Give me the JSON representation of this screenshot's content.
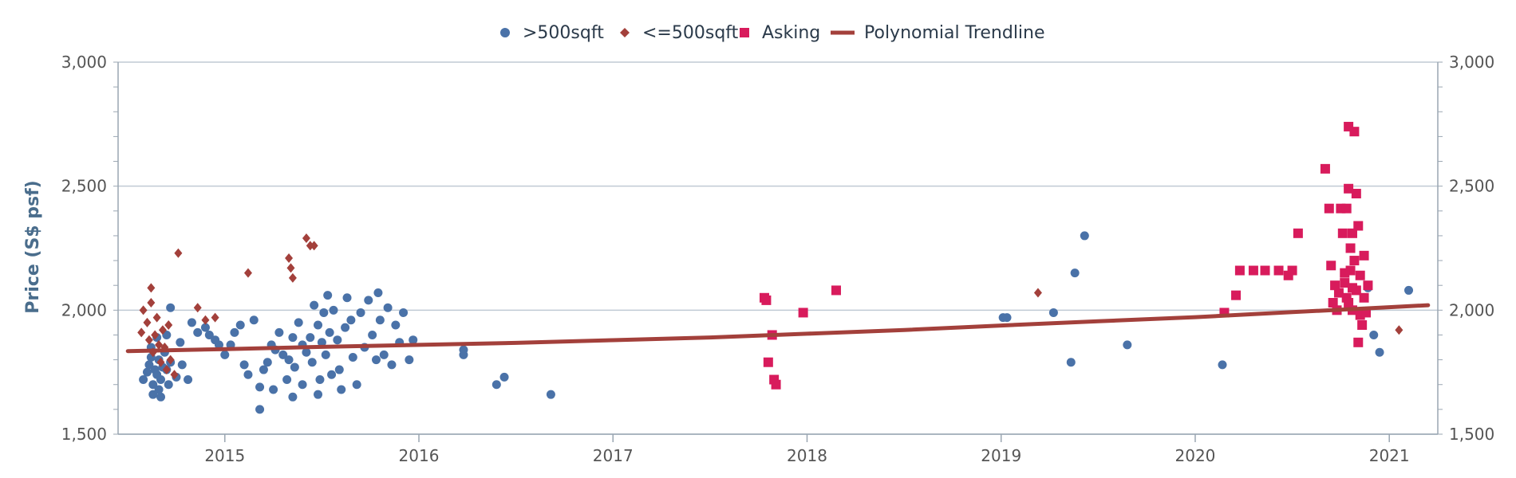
{
  "chart_data": {
    "type": "scatter",
    "title": "",
    "xlabel": "",
    "ylabel": "Price (S$ psf)",
    "xlim": [
      2014.45,
      2021.25
    ],
    "ylim": [
      1500,
      3000
    ],
    "x_ticks": [
      "2015",
      "2016",
      "2017",
      "2018",
      "2019",
      "2020",
      "2021"
    ],
    "y_ticks": [
      "1,500",
      "2,000",
      "2,500",
      "3,000"
    ],
    "right_y_ticks": [
      "1,500",
      "2,000",
      "2,500",
      "3,000"
    ],
    "gridlines": true,
    "legend_position": "top-center",
    "colors": {
      "large": "#4a72a8",
      "small": "#a3403b",
      "asking": "#d81b5c",
      "trend": "#a3403b",
      "grid": "#c0cad4",
      "axis_label": "#4a6d8c"
    },
    "series": [
      {
        "name": ">500sqft",
        "marker": "circle",
        "color": "#4a72a8",
        "points": [
          [
            2014.58,
            1720
          ],
          [
            2014.6,
            1750
          ],
          [
            2014.61,
            1780
          ],
          [
            2014.62,
            1810
          ],
          [
            2014.62,
            1850
          ],
          [
            2014.63,
            1700
          ],
          [
            2014.63,
            1660
          ],
          [
            2014.64,
            1760
          ],
          [
            2014.65,
            1890
          ],
          [
            2014.65,
            1740
          ],
          [
            2014.66,
            1680
          ],
          [
            2014.66,
            1800
          ],
          [
            2014.67,
            1720
          ],
          [
            2014.67,
            1650
          ],
          [
            2014.68,
            1770
          ],
          [
            2014.69,
            1830
          ],
          [
            2014.7,
            1900
          ],
          [
            2014.7,
            1760
          ],
          [
            2014.71,
            1700
          ],
          [
            2014.72,
            2010
          ],
          [
            2014.72,
            1790
          ],
          [
            2014.75,
            1730
          ],
          [
            2014.77,
            1870
          ],
          [
            2014.78,
            1780
          ],
          [
            2014.81,
            1720
          ],
          [
            2014.83,
            1950
          ],
          [
            2014.86,
            1910
          ],
          [
            2014.9,
            1930
          ],
          [
            2014.92,
            1900
          ],
          [
            2014.95,
            1880
          ],
          [
            2014.97,
            1860
          ],
          [
            2015.0,
            1820
          ],
          [
            2015.03,
            1860
          ],
          [
            2015.05,
            1910
          ],
          [
            2015.08,
            1940
          ],
          [
            2015.1,
            1780
          ],
          [
            2015.12,
            1740
          ],
          [
            2015.15,
            1960
          ],
          [
            2015.18,
            1690
          ],
          [
            2015.2,
            1760
          ],
          [
            2015.22,
            1790
          ],
          [
            2015.24,
            1860
          ],
          [
            2015.26,
            1840
          ],
          [
            2015.28,
            1910
          ],
          [
            2015.3,
            1820
          ],
          [
            2015.32,
            1720
          ],
          [
            2015.33,
            1800
          ],
          [
            2015.35,
            1890
          ],
          [
            2015.36,
            1770
          ],
          [
            2015.38,
            1950
          ],
          [
            2015.4,
            1860
          ],
          [
            2015.4,
            1700
          ],
          [
            2015.42,
            1830
          ],
          [
            2015.44,
            1890
          ],
          [
            2015.45,
            1790
          ],
          [
            2015.46,
            2020
          ],
          [
            2015.48,
            1940
          ],
          [
            2015.49,
            1720
          ],
          [
            2015.5,
            1870
          ],
          [
            2015.51,
            1990
          ],
          [
            2015.52,
            1820
          ],
          [
            2015.54,
            1910
          ],
          [
            2015.55,
            1740
          ],
          [
            2015.56,
            2000
          ],
          [
            2015.58,
            1880
          ],
          [
            2015.59,
            1760
          ],
          [
            2015.6,
            1680
          ],
          [
            2015.62,
            1930
          ],
          [
            2015.63,
            2050
          ],
          [
            2015.65,
            1960
          ],
          [
            2015.66,
            1810
          ],
          [
            2015.68,
            1700
          ],
          [
            2015.7,
            1990
          ],
          [
            2015.72,
            1850
          ],
          [
            2015.74,
            2040
          ],
          [
            2015.76,
            1900
          ],
          [
            2015.78,
            1800
          ],
          [
            2015.8,
            1960
          ],
          [
            2015.82,
            1820
          ],
          [
            2015.84,
            2010
          ],
          [
            2015.86,
            1780
          ],
          [
            2015.88,
            1940
          ],
          [
            2015.9,
            1870
          ],
          [
            2015.92,
            1990
          ],
          [
            2015.95,
            1800
          ],
          [
            2015.97,
            1880
          ],
          [
            2015.18,
            1600
          ],
          [
            2015.25,
            1680
          ],
          [
            2015.35,
            1650
          ],
          [
            2015.48,
            1660
          ],
          [
            2015.53,
            2060
          ],
          [
            2015.79,
            2070
          ],
          [
            2016.23,
            1820
          ],
          [
            2016.23,
            1840
          ],
          [
            2016.4,
            1700
          ],
          [
            2016.44,
            1730
          ],
          [
            2016.68,
            1660
          ],
          [
            2019.01,
            1970
          ],
          [
            2019.03,
            1970
          ],
          [
            2019.27,
            1990
          ],
          [
            2019.36,
            1790
          ],
          [
            2019.38,
            2150
          ],
          [
            2019.43,
            2300
          ],
          [
            2019.65,
            1860
          ],
          [
            2020.14,
            1780
          ],
          [
            2020.89,
            2090
          ],
          [
            2020.92,
            1900
          ],
          [
            2020.95,
            1830
          ],
          [
            2021.1,
            2080
          ]
        ]
      },
      {
        "name": "<=500sqft",
        "marker": "diamond",
        "color": "#a3403b",
        "points": [
          [
            2014.57,
            1910
          ],
          [
            2014.58,
            2000
          ],
          [
            2014.6,
            1950
          ],
          [
            2014.61,
            1880
          ],
          [
            2014.62,
            2090
          ],
          [
            2014.62,
            2030
          ],
          [
            2014.63,
            1830
          ],
          [
            2014.64,
            1900
          ],
          [
            2014.65,
            1970
          ],
          [
            2014.66,
            1860
          ],
          [
            2014.67,
            1790
          ],
          [
            2014.68,
            1920
          ],
          [
            2014.69,
            1850
          ],
          [
            2014.7,
            1760
          ],
          [
            2014.71,
            1940
          ],
          [
            2014.72,
            1800
          ],
          [
            2014.74,
            1740
          ],
          [
            2014.76,
            2230
          ],
          [
            2014.9,
            1960
          ],
          [
            2015.12,
            2150
          ],
          [
            2015.33,
            2210
          ],
          [
            2015.34,
            2170
          ],
          [
            2015.35,
            2130
          ],
          [
            2015.42,
            2290
          ],
          [
            2015.44,
            2260
          ],
          [
            2015.46,
            2260
          ],
          [
            2019.19,
            2070
          ],
          [
            2021.05,
            1920
          ],
          [
            2014.86,
            2010
          ],
          [
            2014.95,
            1970
          ]
        ]
      },
      {
        "name": "Asking",
        "marker": "square",
        "color": "#d81b5c",
        "points": [
          [
            2017.78,
            2050
          ],
          [
            2017.79,
            2040
          ],
          [
            2017.8,
            1790
          ],
          [
            2017.82,
            1900
          ],
          [
            2017.83,
            1720
          ],
          [
            2017.84,
            1700
          ],
          [
            2017.98,
            1990
          ],
          [
            2018.15,
            2080
          ],
          [
            2020.15,
            1990
          ],
          [
            2020.21,
            2060
          ],
          [
            2020.23,
            2160
          ],
          [
            2020.3,
            2160
          ],
          [
            2020.36,
            2160
          ],
          [
            2020.43,
            2160
          ],
          [
            2020.48,
            2140
          ],
          [
            2020.5,
            2160
          ],
          [
            2020.53,
            2310
          ],
          [
            2020.67,
            2570
          ],
          [
            2020.69,
            2410
          ],
          [
            2020.7,
            2180
          ],
          [
            2020.71,
            2030
          ],
          [
            2020.72,
            2100
          ],
          [
            2020.73,
            2000
          ],
          [
            2020.74,
            2070
          ],
          [
            2020.75,
            2410
          ],
          [
            2020.76,
            2310
          ],
          [
            2020.77,
            2110
          ],
          [
            2020.78,
            2050
          ],
          [
            2020.78,
            2410
          ],
          [
            2020.79,
            2740
          ],
          [
            2020.79,
            2490
          ],
          [
            2020.8,
            2250
          ],
          [
            2020.8,
            2160
          ],
          [
            2020.81,
            2000
          ],
          [
            2020.81,
            2310
          ],
          [
            2020.82,
            2720
          ],
          [
            2020.82,
            2200
          ],
          [
            2020.83,
            2080
          ],
          [
            2020.83,
            2470
          ],
          [
            2020.84,
            2340
          ],
          [
            2020.84,
            1870
          ],
          [
            2020.85,
            1980
          ],
          [
            2020.85,
            2140
          ],
          [
            2020.86,
            1940
          ],
          [
            2020.87,
            2220
          ],
          [
            2020.87,
            2050
          ],
          [
            2020.88,
            1990
          ],
          [
            2020.89,
            2100
          ],
          [
            2020.77,
            2150
          ],
          [
            2020.79,
            2030
          ],
          [
            2020.81,
            2090
          ]
        ]
      },
      {
        "name": "Polynomial Trendline",
        "marker": "line",
        "color": "#a3403b",
        "points": [
          [
            2014.5,
            1835
          ],
          [
            2015.0,
            1843
          ],
          [
            2015.5,
            1852
          ],
          [
            2016.0,
            1860
          ],
          [
            2016.5,
            1868
          ],
          [
            2017.0,
            1879
          ],
          [
            2017.5,
            1890
          ],
          [
            2018.0,
            1905
          ],
          [
            2018.5,
            1920
          ],
          [
            2019.0,
            1938
          ],
          [
            2019.5,
            1955
          ],
          [
            2020.0,
            1972
          ],
          [
            2020.5,
            1992
          ],
          [
            2021.0,
            2012
          ],
          [
            2021.2,
            2020
          ]
        ]
      }
    ]
  }
}
